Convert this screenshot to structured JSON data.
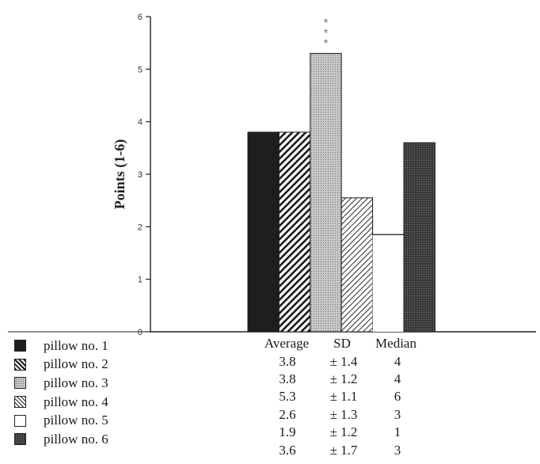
{
  "chart_data": {
    "type": "bar",
    "title": "",
    "xlabel": "",
    "ylabel": "Points (1-6)",
    "ylim": [
      0,
      6
    ],
    "yticks": [
      "0",
      "1",
      "2",
      "3",
      "4",
      "5",
      "6"
    ],
    "grid": false,
    "legend_position": "bottom-left",
    "annotation": "***",
    "annotation_category": "pillow no. 3",
    "categories": [
      "pillow no. 1",
      "pillow no. 2",
      "pillow no. 3",
      "pillow no. 4",
      "pillow no. 5",
      "pillow no. 6"
    ],
    "values": [
      3.8,
      3.8,
      5.3,
      2.55,
      1.85,
      3.6
    ],
    "fills": [
      "solid dark",
      "diagonal hatch",
      "dotted gray",
      "light diagonal hatch",
      "white",
      "dark stipple"
    ]
  },
  "table": {
    "headers": [
      "Average",
      "SD",
      "Median"
    ],
    "rows": [
      [
        "3.8",
        "± 1.4",
        "4"
      ],
      [
        "3.8",
        "± 1.2",
        "4"
      ],
      [
        "5.3",
        "± 1.1",
        "6"
      ],
      [
        "2.6",
        "± 1.3",
        "3"
      ],
      [
        "1.9",
        "± 1.2",
        "1"
      ],
      [
        "3.6",
        "± 1.7",
        "3"
      ]
    ]
  },
  "colors": {
    "axis": "#222222",
    "solid": "#1e1e1e",
    "stipple_dark": "#3a3a3a",
    "dotted_gray": "#b0b0b0"
  }
}
